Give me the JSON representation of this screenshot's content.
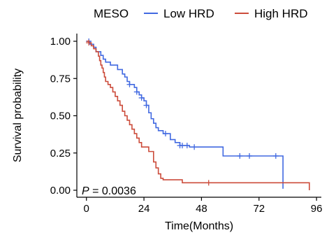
{
  "chart_data": {
    "type": "line",
    "legend": {
      "title": "MESO",
      "placement": "top"
    },
    "xlabel": "Time(Months)",
    "ylabel": "Survival probability",
    "xlim": [
      -4,
      98
    ],
    "ylim": [
      0,
      1
    ],
    "x_ticks": [
      0,
      24,
      48,
      72,
      96
    ],
    "y_ticks": [
      0.0,
      0.25,
      0.5,
      0.75,
      1.0
    ],
    "y_tick_labels": [
      "0.00",
      "0.25",
      "0.50",
      "0.75",
      "1.00"
    ],
    "grid": false,
    "pvalue_italic": "P",
    "pvalue_text": " = 0.0036",
    "series": [
      {
        "name": "Low HRD",
        "color": "#4169E1",
        "steps": [
          [
            0,
            1.0
          ],
          [
            1.5,
            0.98
          ],
          [
            3,
            0.96
          ],
          [
            4,
            0.93
          ],
          [
            6,
            0.905
          ],
          [
            7,
            0.88
          ],
          [
            8,
            0.86
          ],
          [
            10,
            0.84
          ],
          [
            13,
            0.81
          ],
          [
            15,
            0.78
          ],
          [
            16,
            0.76
          ],
          [
            17,
            0.73
          ],
          [
            18,
            0.71
          ],
          [
            20,
            0.69
          ],
          [
            21,
            0.66
          ],
          [
            22,
            0.64
          ],
          [
            23,
            0.62
          ],
          [
            24,
            0.6
          ],
          [
            25,
            0.57
          ],
          [
            26,
            0.52
          ],
          [
            27,
            0.48
          ],
          [
            28,
            0.45
          ],
          [
            29,
            0.42
          ],
          [
            30,
            0.4
          ],
          [
            32,
            0.38
          ],
          [
            35,
            0.34
          ],
          [
            37,
            0.32
          ],
          [
            39,
            0.3
          ],
          [
            43,
            0.29
          ],
          [
            57,
            0.23
          ],
          [
            82,
            0.01
          ]
        ],
        "end_x": 82,
        "censor_x": [
          1,
          18,
          21,
          23,
          25,
          33,
          39,
          40,
          42,
          45,
          64,
          68,
          79
        ]
      },
      {
        "name": "High HRD",
        "color": "#CC4C3B",
        "steps": [
          [
            0,
            1.0
          ],
          [
            1,
            0.99
          ],
          [
            2,
            0.97
          ],
          [
            3,
            0.95
          ],
          [
            4,
            0.93
          ],
          [
            5,
            0.9
          ],
          [
            5.5,
            0.87
          ],
          [
            6,
            0.84
          ],
          [
            6.5,
            0.82
          ],
          [
            7,
            0.79
          ],
          [
            7.5,
            0.76
          ],
          [
            8,
            0.73
          ],
          [
            9,
            0.71
          ],
          [
            10,
            0.69
          ],
          [
            11,
            0.66
          ],
          [
            12,
            0.63
          ],
          [
            13,
            0.6
          ],
          [
            14,
            0.57
          ],
          [
            15,
            0.53
          ],
          [
            16,
            0.5
          ],
          [
            17,
            0.47
          ],
          [
            18,
            0.44
          ],
          [
            19,
            0.41
          ],
          [
            20,
            0.38
          ],
          [
            21,
            0.35
          ],
          [
            22,
            0.32
          ],
          [
            23,
            0.29
          ],
          [
            26,
            0.26
          ],
          [
            28,
            0.19
          ],
          [
            29,
            0.15
          ],
          [
            30,
            0.11
          ],
          [
            31,
            0.08
          ],
          [
            32,
            0.07
          ],
          [
            40,
            0.05
          ],
          [
            93,
            0.0
          ]
        ],
        "end_x": 93,
        "censor_x": [
          1,
          51
        ]
      }
    ]
  }
}
